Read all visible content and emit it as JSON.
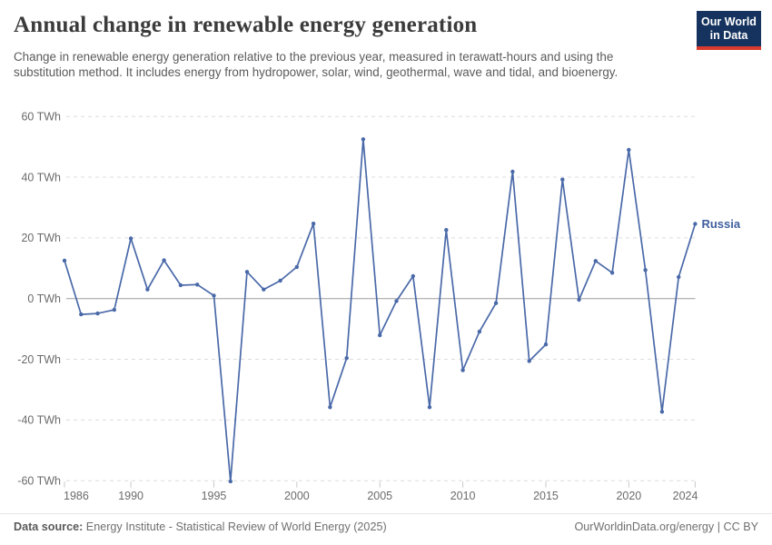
{
  "header": {
    "title": "Annual change in renewable energy generation",
    "subtitle": "Change in renewable energy generation relative to the previous year, measured in terawatt-hours and using the substitution method. It includes energy from hydropower, solar, wind, geothermal, wave and tidal, and bioenergy.",
    "logo_line1": "Our World",
    "logo_line2": "in Data",
    "logo_bg_color": "#15335e",
    "logo_accent_color": "#d93a2d"
  },
  "chart_data": {
    "type": "line",
    "title": "Annual change in renewable energy generation",
    "unit": "TWh",
    "xlabel": "",
    "ylabel": "",
    "xlim": [
      1986,
      2024
    ],
    "ylim": [
      -60,
      60
    ],
    "grid": "horizontal-dashed",
    "x_ticks": [
      1986,
      1990,
      1995,
      2000,
      2005,
      2010,
      2015,
      2020,
      2024
    ],
    "y_ticks": [
      {
        "value": 60,
        "label": "60 TWh"
      },
      {
        "value": 40,
        "label": "40 TWh"
      },
      {
        "value": 20,
        "label": "20 TWh"
      },
      {
        "value": 0,
        "label": "0 TWh"
      },
      {
        "value": -20,
        "label": "-20 TWh"
      },
      {
        "value": -40,
        "label": "-40 TWh"
      },
      {
        "value": -60,
        "label": "-60 TWh"
      }
    ],
    "series": [
      {
        "name": "Russia",
        "color": "#4a69a8",
        "label_color": "#3f5f9e",
        "x": [
          1986,
          1987,
          1988,
          1989,
          1990,
          1991,
          1992,
          1993,
          1994,
          1995,
          1996,
          1997,
          1998,
          1999,
          2000,
          2001,
          2002,
          2003,
          2004,
          2005,
          2006,
          2007,
          2008,
          2009,
          2010,
          2011,
          2012,
          2013,
          2014,
          2015,
          2016,
          2017,
          2018,
          2019,
          2020,
          2021,
          2022,
          2023,
          2024
        ],
        "values": [
          12.5,
          -5.2,
          -4.9,
          -3.7,
          19.8,
          3.0,
          12.6,
          4.4,
          4.6,
          1.0,
          -60.2,
          8.8,
          3.0,
          5.9,
          10.4,
          24.7,
          -35.8,
          -19.6,
          52.5,
          -12.1,
          -0.8,
          7.4,
          -35.8,
          22.6,
          -23.6,
          -10.9,
          -1.5,
          41.8,
          -20.6,
          -15.1,
          39.2,
          -0.4,
          12.4,
          8.5,
          49.0,
          9.4,
          -37.3,
          7.1,
          24.6
        ]
      }
    ],
    "annotations": [
      {
        "text": "Russia",
        "series": "Russia",
        "position": "line-end"
      }
    ],
    "colors": {
      "line": "#4a69a8",
      "grid_dashed": "#dcdcdc",
      "zero_line": "#9e9e9e",
      "tick_mark": "#c9c9c9",
      "tick_text": "#6b6b6b"
    }
  },
  "footer": {
    "datasource_label": "Data source:",
    "datasource_text": " Energy Institute - Statistical Review of World Energy (2025)",
    "credit_text": "OurWorldinData.org/energy | CC BY"
  }
}
